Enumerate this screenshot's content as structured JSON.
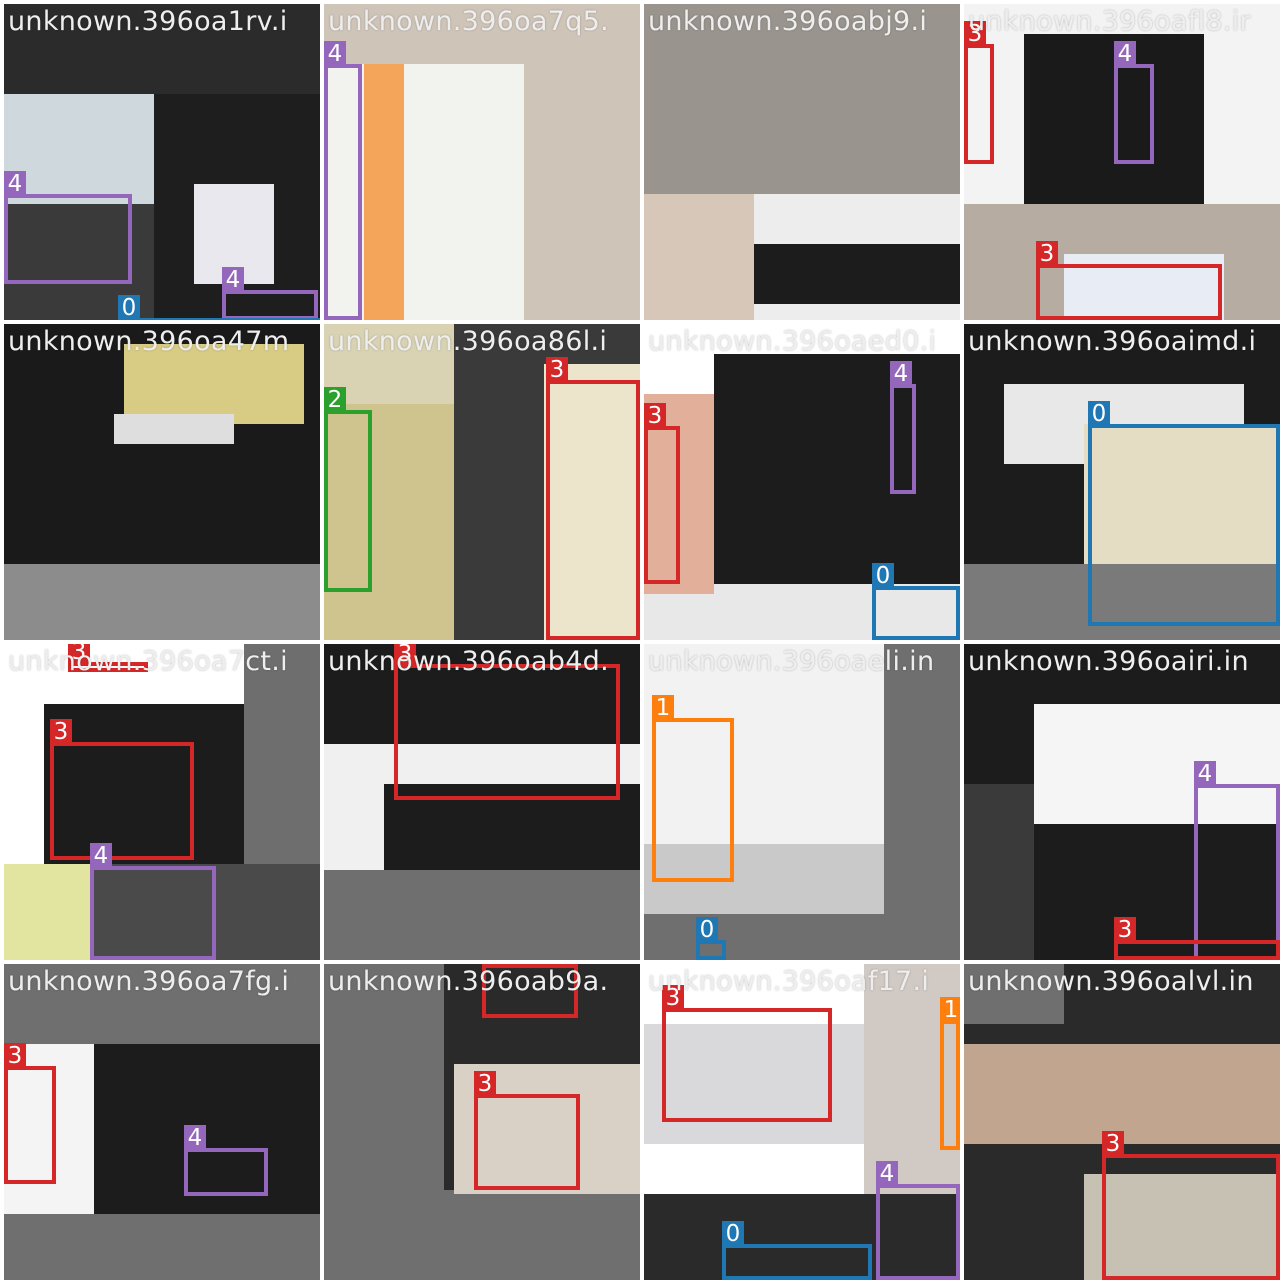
{
  "grid": {
    "rows": 4,
    "cols": 4
  },
  "class_colors": {
    "0": "#1f77b4",
    "1": "#ff7f0e",
    "2": "#2ca02c",
    "3": "#d62728",
    "4": "#9467bd"
  },
  "tiles": [
    {
      "title": "unknown.396oa1rv.i",
      "boxes": [
        {
          "label": "4"
        },
        {
          "label": "4"
        },
        {
          "label": "0"
        }
      ]
    },
    {
      "title": "unknown.396oa7q5.",
      "boxes": [
        {
          "label": "4"
        }
      ]
    },
    {
      "title": "unknown.396oabj9.i",
      "boxes": []
    },
    {
      "title": "unknown.396oafl8.ir",
      "boxes": [
        {
          "label": "3"
        },
        {
          "label": "4"
        },
        {
          "label": "3"
        }
      ]
    },
    {
      "title": "unknown.396oa47m",
      "boxes": []
    },
    {
      "title": "unknown.396oa86l.i",
      "boxes": [
        {
          "label": "2"
        },
        {
          "label": "3"
        }
      ]
    },
    {
      "title": "unknown.396oaed0.i",
      "boxes": [
        {
          "label": "3"
        },
        {
          "label": "4"
        },
        {
          "label": "0"
        }
      ]
    },
    {
      "title": "unknown.396oaimd.i",
      "boxes": [
        {
          "label": "0"
        }
      ]
    },
    {
      "title": "unknown.396oa7ct.i",
      "boxes": [
        {
          "label": "3"
        },
        {
          "label": "3"
        },
        {
          "label": "4"
        }
      ]
    },
    {
      "title": "unknown.396oab4d.",
      "boxes": [
        {
          "label": "3"
        }
      ]
    },
    {
      "title": "unknown.396oaeli.in",
      "boxes": [
        {
          "label": "1"
        },
        {
          "label": "0"
        }
      ]
    },
    {
      "title": "unknown.396oairi.in",
      "boxes": [
        {
          "label": "4"
        },
        {
          "label": "3"
        }
      ]
    },
    {
      "title": "unknown.396oa7fg.i",
      "boxes": [
        {
          "label": "3"
        },
        {
          "label": "4"
        }
      ]
    },
    {
      "title": "unknown.396oab9a.",
      "boxes": [
        {
          "label": "3"
        },
        {
          "label": "3"
        }
      ]
    },
    {
      "title": "unknown.396oaf17.i",
      "boxes": [
        {
          "label": "3"
        },
        {
          "label": "1"
        },
        {
          "label": "4"
        },
        {
          "label": "0"
        }
      ]
    },
    {
      "title": "unknown.396oalvl.in",
      "boxes": [
        {
          "label": "3"
        }
      ]
    }
  ]
}
